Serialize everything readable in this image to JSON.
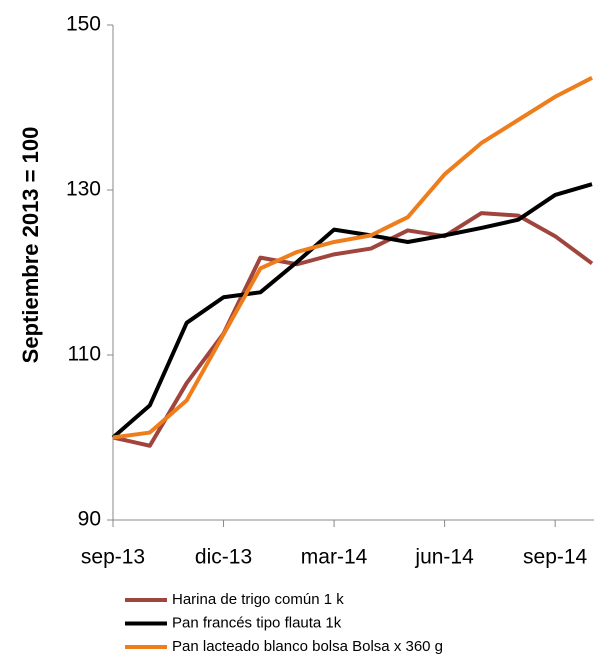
{
  "chart_data": {
    "type": "line",
    "y_label": "Septiembre  2013  = 100",
    "categories": [
      "sep-13",
      null,
      null,
      "dic-13",
      null,
      null,
      "mar-14",
      null,
      null,
      "jun-14",
      null,
      null,
      "sep-14",
      null
    ],
    "series": [
      {
        "name": "Harina de trigo común  1 k",
        "color": "#a0443e",
        "values": [
          100,
          99.0,
          106.6,
          112.6,
          121.8,
          121.0,
          122.2,
          122.9,
          125.1,
          124.4,
          127.2,
          126.9,
          124.4,
          121.1
        ]
      },
      {
        "name": "Pan francés tipo flauta 1k",
        "color": "#000000",
        "values": [
          100,
          103.9,
          113.9,
          117.0,
          117.6,
          121.3,
          125.2,
          124.5,
          123.7,
          124.5,
          125.4,
          126.4,
          129.4,
          130.7
        ]
      },
      {
        "name": "Pan lacteado blanco bolsa  Bolsa x 360 g",
        "color": "#ee7d1b",
        "values": [
          100,
          100.6,
          104.5,
          112.5,
          120.5,
          122.5,
          123.7,
          124.5,
          126.7,
          131.9,
          135.7,
          138.5,
          141.3,
          143.6
        ]
      }
    ],
    "ylim": [
      90,
      150
    ],
    "yticks": [
      90,
      110,
      130,
      150
    ],
    "grid": false
  }
}
